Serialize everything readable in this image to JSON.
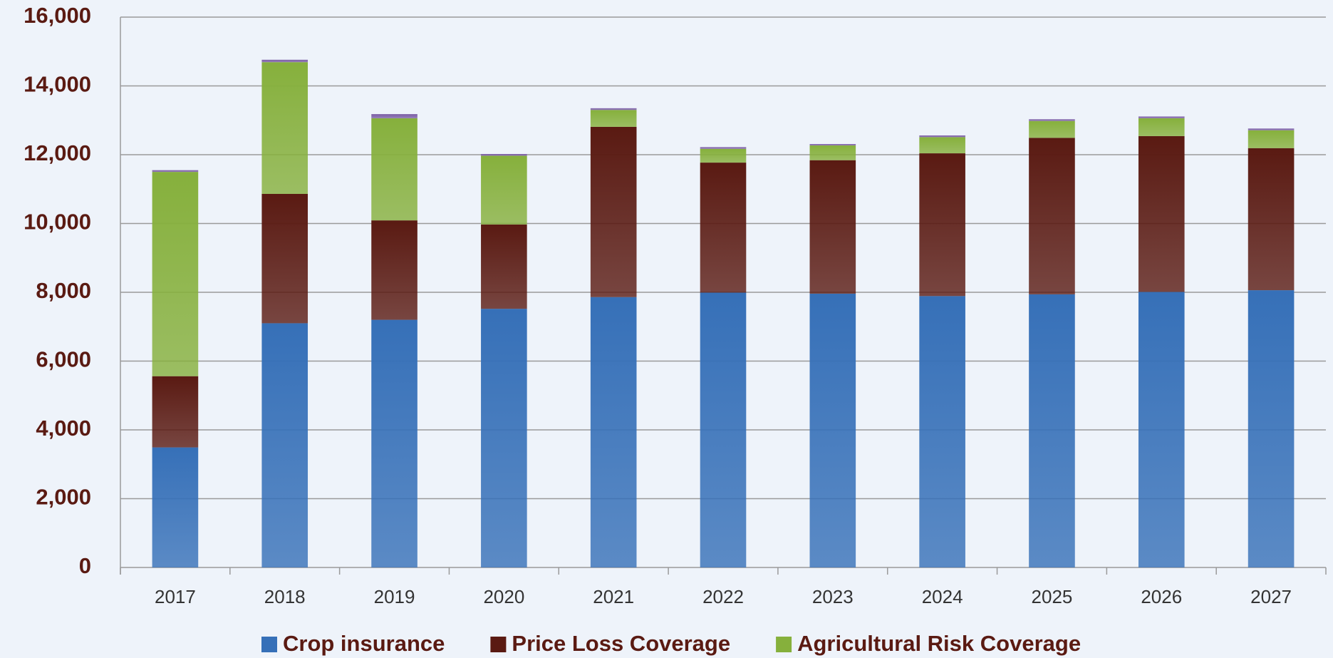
{
  "chart_data": {
    "type": "stacked_bar",
    "categories": [
      "2017",
      "2018",
      "2019",
      "2020",
      "2021",
      "2022",
      "2023",
      "2024",
      "2025",
      "2026",
      "2027"
    ],
    "series": [
      {
        "name": "Crop insurance",
        "color": "#3670b8",
        "values": [
          3490,
          7100,
          7200,
          7520,
          7860,
          7990,
          7960,
          7890,
          7940,
          8010,
          8060
        ]
      },
      {
        "name": "Price Loss Coverage",
        "color": "#5a1a12",
        "values": [
          2070,
          3760,
          2890,
          2450,
          4950,
          3780,
          3880,
          4150,
          4550,
          4530,
          4130
        ]
      },
      {
        "name": "Agricultural Risk Coverage",
        "color": "#86b03c",
        "values": [
          5940,
          3830,
          2970,
          2000,
          490,
          400,
          430,
          470,
          490,
          520,
          520
        ]
      },
      {
        "color": "#7d5fa6",
        "values": [
          50,
          70,
          120,
          50,
          50,
          50,
          40,
          50,
          50,
          50,
          50
        ]
      }
    ],
    "ylim": [
      0,
      16000
    ],
    "yticks": [
      {
        "value": 0,
        "label": "0"
      },
      {
        "value": 2000,
        "label": "2,000"
      },
      {
        "value": 4000,
        "label": "4,000"
      },
      {
        "value": 6000,
        "label": "6,000"
      },
      {
        "value": 8000,
        "label": "8,000"
      },
      {
        "value": 10000,
        "label": "10,000"
      },
      {
        "value": 12000,
        "label": "12,000"
      },
      {
        "value": 14000,
        "label": "14,000"
      },
      {
        "value": 16000,
        "label": "16,000"
      }
    ],
    "grid": true
  }
}
